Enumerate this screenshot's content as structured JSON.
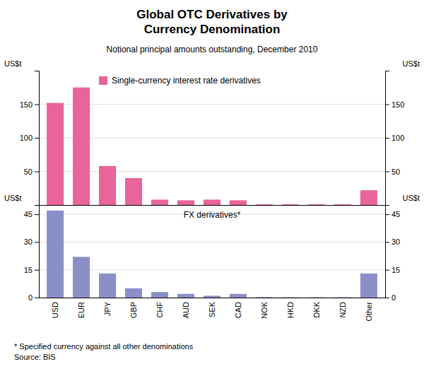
{
  "chart_data": [
    {
      "type": "bar",
      "title": "Global OTC Derivatives by\nCurrency Denomination",
      "subtitle": "Notional principal amounts outstanding, December 2010",
      "categories": [
        "USD",
        "EUR",
        "JPY",
        "GBP",
        "CHF",
        "AUD",
        "SEK",
        "CAD",
        "NOK",
        "HKD",
        "DKK",
        "NZD",
        "Other"
      ],
      "series": [
        {
          "name": "Single-currency interest rate derivatives",
          "color": "#E8649A",
          "values": [
            152,
            175,
            58,
            40,
            8,
            7,
            8,
            7,
            1,
            1,
            1,
            1,
            22
          ]
        }
      ],
      "ylabel": "US$t",
      "ylim": [
        0,
        200
      ],
      "yticks": [
        50,
        100,
        150
      ],
      "grid": true,
      "legend": "upper left",
      "tick_labels": "y"
    },
    {
      "type": "bar",
      "categories": [
        "USD",
        "EUR",
        "JPY",
        "GBP",
        "CHF",
        "AUD",
        "SEK",
        "CAD",
        "NOK",
        "HKD",
        "DKK",
        "NZD",
        "Other"
      ],
      "series": [
        {
          "name": "FX derivatives*",
          "color": "#8B8FC8",
          "values": [
            47,
            22,
            13,
            5,
            3,
            2,
            1,
            2,
            0.3,
            0.2,
            0.2,
            0.2,
            13
          ]
        }
      ],
      "ylabel": "US$t",
      "ylim": [
        0,
        50
      ],
      "yticks": [
        0,
        15,
        30,
        45
      ],
      "grid": true,
      "footnote": "*  Specified currency against all other denominations\nSource: BIS"
    }
  ]
}
